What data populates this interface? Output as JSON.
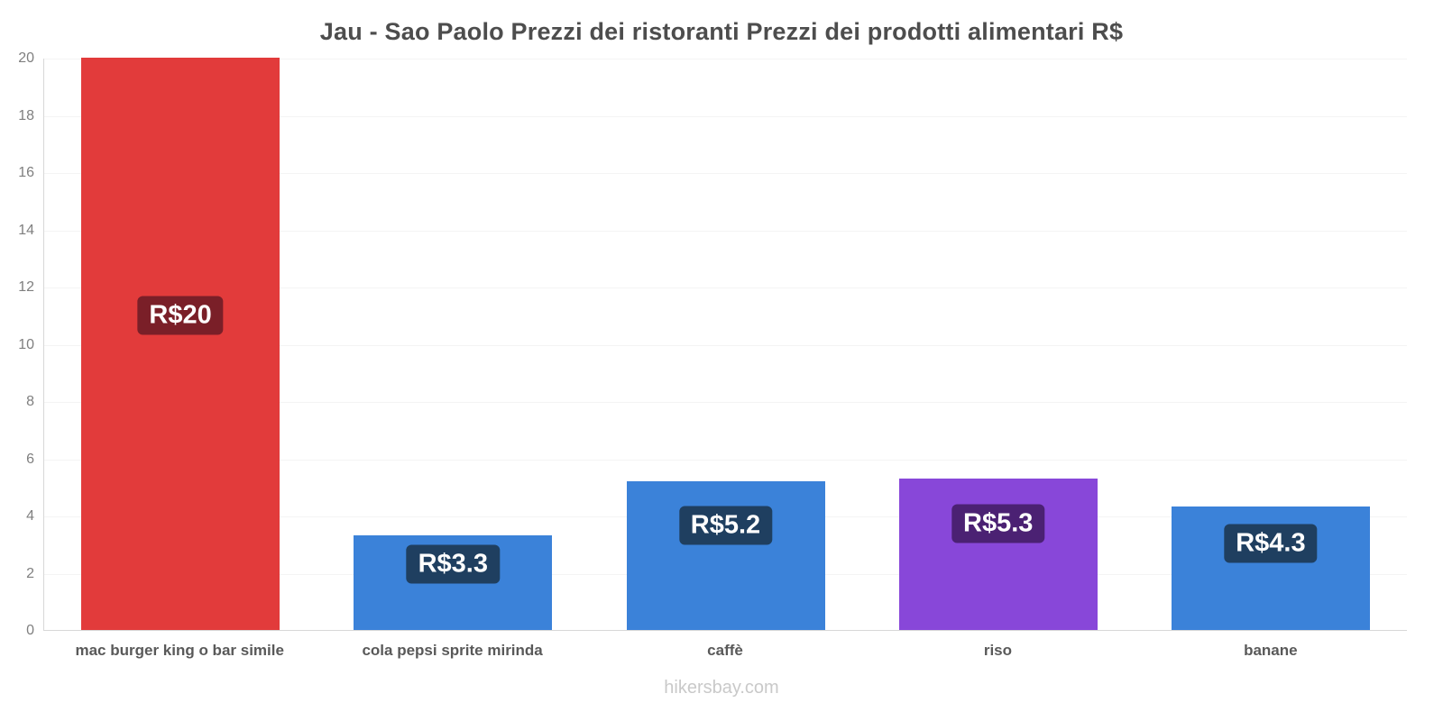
{
  "chart_data": {
    "type": "bar",
    "title": "Jau - Sao Paolo Prezzi dei ristoranti Prezzi dei prodotti alimentari R$",
    "categories": [
      "mac burger king o bar simile",
      "cola pepsi sprite mirinda",
      "caffè",
      "riso",
      "banane"
    ],
    "values": [
      20,
      3.3,
      5.2,
      5.3,
      4.3
    ],
    "value_labels": [
      "R$20",
      "R$3.3",
      "R$5.2",
      "R$5.3",
      "R$4.3"
    ],
    "bar_colors": [
      "#e23b3b",
      "#3b82d9",
      "#3b82d9",
      "#8847d9",
      "#3b82d9"
    ],
    "badge_colors": [
      "#7a1f28",
      "#1f3f60",
      "#1f3f60",
      "#4b2173",
      "#1f3f60"
    ],
    "ylim": [
      0,
      20
    ],
    "ytick_step": 2,
    "grid": "horizontal-faint",
    "legend": "none",
    "footer": "hikersbay.com"
  }
}
